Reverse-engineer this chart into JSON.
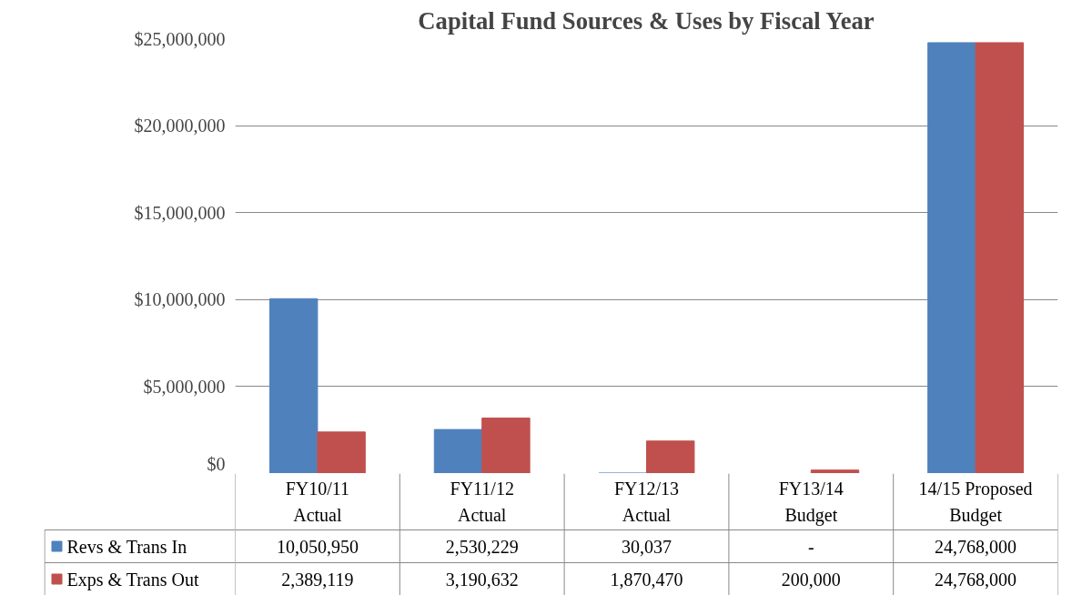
{
  "chart_data": {
    "type": "bar",
    "title": "Capital Fund Sources & Uses by Fiscal Year",
    "categories": [
      "FY10/11\nActual",
      "FY11/12\nActual",
      "FY12/13\nActual",
      "FY13/14\nBudget",
      "14/15 Proposed\nBudget"
    ],
    "series": [
      {
        "name": "Revs & Trans In",
        "color": "#4f81bd",
        "values": [
          10050950,
          2530229,
          30037,
          null,
          24768000
        ],
        "value_labels": [
          "10,050,950",
          "2,530,229",
          "30,037",
          "-",
          "24,768,000"
        ]
      },
      {
        "name": "Exps & Trans Out",
        "color": "#c0504d",
        "values": [
          2389119,
          3190632,
          1870470,
          200000,
          24768000
        ],
        "value_labels": [
          "2,389,119",
          "3,190,632",
          "1,870,470",
          "200,000",
          "24,768,000"
        ]
      }
    ],
    "ylim": [
      0,
      25000000
    ],
    "yticks": [
      {
        "value": 0,
        "label": "$0"
      },
      {
        "value": 5000000,
        "label": "$5,000,000"
      },
      {
        "value": 10000000,
        "label": "$10,000,000"
      },
      {
        "value": 15000000,
        "label": "$15,000,000"
      },
      {
        "value": 20000000,
        "label": "$20,000,000"
      },
      {
        "value": 25000000,
        "label": "$25,000,000"
      }
    ],
    "grid": "y",
    "legend": "bottom"
  }
}
